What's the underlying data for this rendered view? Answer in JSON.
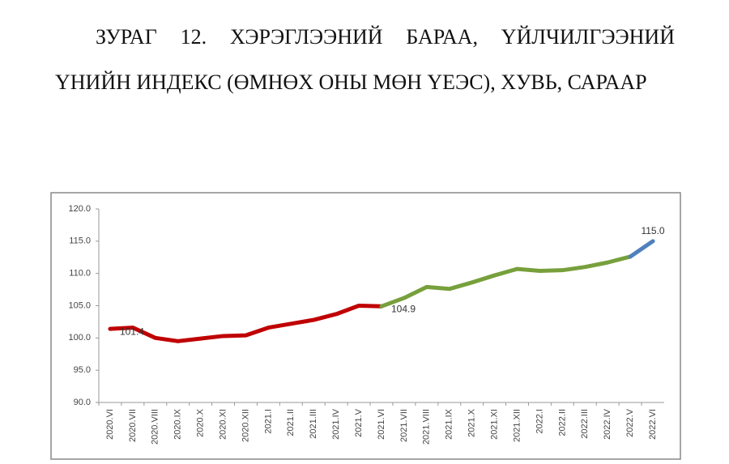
{
  "chart_data": {
    "type": "line",
    "title": "ЗУРАГ 12. ХЭРЭГЛЭЭНИЙ БАРАА, ҮЙЛЧИЛГЭЭНИЙ ҮНИЙН ИНДЕКС (ӨМНӨХ ОНЫ МӨН ҮЕЭС), ХУВЬ, САРААР",
    "categories": [
      "2020.VI",
      "2020.VII",
      "2020.VIII",
      "2020.IX",
      "2020.X",
      "2020.XI",
      "2020.XII",
      "2021.I",
      "2021.II",
      "2021.III",
      "2021.IV",
      "2021.V",
      "2021.VI",
      "2021.VII",
      "2021.VIII",
      "2021.IX",
      "2021.X",
      "2021.XI",
      "2021.XII",
      "2022.I",
      "2022.II",
      "2022.III",
      "2022.IV",
      "2022.V",
      "2022.VI"
    ],
    "series": [
      {
        "color": "#c00000",
        "values": [
          101.4,
          101.6,
          100.0,
          99.5,
          99.9,
          100.3,
          100.4,
          101.6,
          102.2,
          102.8,
          103.7,
          105.0,
          104.9,
          null,
          null,
          null,
          null,
          null,
          null,
          null,
          null,
          null,
          null,
          null,
          null
        ],
        "value_labels": [
          "101.4",
          null,
          null,
          null,
          null,
          null,
          null,
          null,
          null,
          null,
          null,
          null,
          null,
          null,
          null,
          null,
          null,
          null,
          null,
          null,
          null,
          null,
          null,
          null,
          null
        ]
      },
      {
        "color": "#77a03c",
        "values": [
          null,
          null,
          null,
          null,
          null,
          null,
          null,
          null,
          null,
          null,
          null,
          null,
          104.9,
          106.2,
          107.9,
          107.6,
          108.6,
          109.7,
          110.7,
          110.4,
          110.5,
          111.0,
          111.7,
          112.6,
          null
        ],
        "value_labels": [
          null,
          null,
          null,
          null,
          null,
          null,
          null,
          null,
          null,
          null,
          null,
          null,
          "104.9",
          null,
          null,
          null,
          null,
          null,
          null,
          null,
          null,
          null,
          null,
          null,
          null
        ]
      },
      {
        "color": "#4f81bd",
        "values": [
          null,
          null,
          null,
          null,
          null,
          null,
          null,
          null,
          null,
          null,
          null,
          null,
          null,
          null,
          null,
          null,
          null,
          null,
          null,
          null,
          null,
          null,
          null,
          112.6,
          115.0
        ],
        "value_labels": [
          null,
          null,
          null,
          null,
          null,
          null,
          null,
          null,
          null,
          null,
          null,
          null,
          null,
          null,
          null,
          null,
          null,
          null,
          null,
          null,
          null,
          null,
          null,
          null,
          "115.0"
        ]
      }
    ],
    "ylim": [
      90,
      120
    ],
    "yticks": [
      {
        "value": 90,
        "label": "90.0"
      },
      {
        "value": 95,
        "label": "95.0"
      },
      {
        "value": 100,
        "label": "100.0"
      },
      {
        "value": 105,
        "label": "105.0"
      },
      {
        "value": 110,
        "label": "110.0"
      },
      {
        "value": 115,
        "label": "115.0"
      },
      {
        "value": 120,
        "label": "120.0"
      }
    ],
    "grid": false
  }
}
